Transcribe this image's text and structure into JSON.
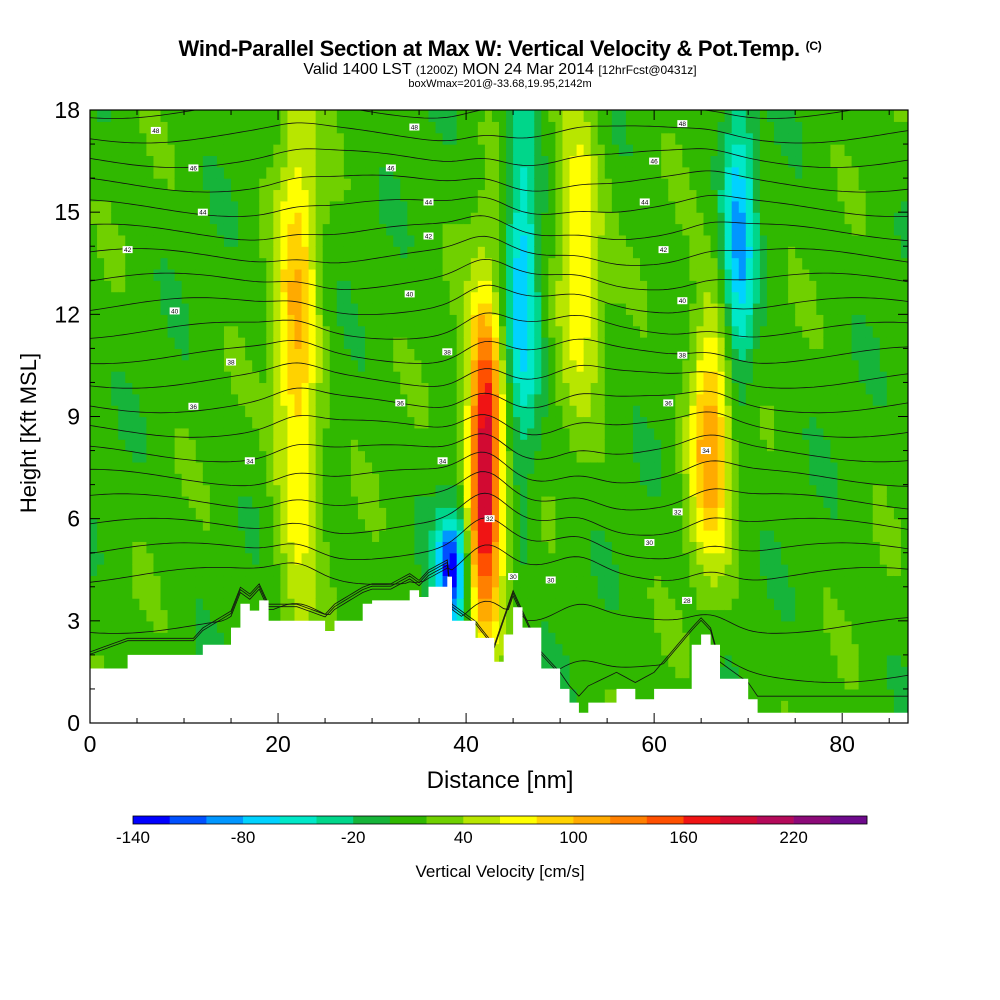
{
  "title": {
    "main": "Wind-Parallel Section at Max W: Vertical Velocity & Pot.Temp.",
    "copyright": "(C)",
    "valid_prefix": "Valid 1400 LST",
    "valid_zulu": "(1200Z)",
    "valid_date": "MON 24 Mar 2014",
    "forecast": "[12hrFcst@0431z]",
    "box_info": "boxWmax=201@-33.68,19.95,2142m"
  },
  "chart_data": {
    "type": "heatmap",
    "xlabel": "Distance [nm]",
    "ylabel": "Height [Kft MSL]",
    "xlim": [
      0,
      87
    ],
    "ylim": [
      0,
      18
    ],
    "x_ticks": [
      0,
      20,
      40,
      60,
      80
    ],
    "y_ticks": [
      0,
      3,
      6,
      9,
      12,
      15,
      18
    ],
    "x_tick_labels": [
      "0",
      "20",
      "40",
      "60",
      "80"
    ],
    "y_tick_labels": [
      "0",
      "3",
      "6",
      "9",
      "12",
      "15",
      "18"
    ],
    "colorbar": {
      "label": "Vertical Velocity [cm/s]",
      "min": -140,
      "max": 260,
      "step": 20,
      "tick_values": [
        -140,
        -80,
        -20,
        40,
        100,
        160,
        220
      ],
      "tick_labels": [
        "-140",
        "-80",
        "-20",
        "40",
        "100",
        "160",
        "220"
      ],
      "colors": [
        "#0000ff",
        "#0050ff",
        "#0096ff",
        "#00d2ff",
        "#00e8c8",
        "#00d68a",
        "#16b43a",
        "#30b800",
        "#70d000",
        "#b8e600",
        "#ffff00",
        "#ffd200",
        "#ffaa00",
        "#ff8000",
        "#ff5000",
        "#f01414",
        "#d20a32",
        "#b40a5a",
        "#8c0a78",
        "#6e0a8c"
      ]
    },
    "updrafts": [
      {
        "x": 22,
        "z_min": 4,
        "z_max": 18,
        "w_max": 90
      },
      {
        "x": 42,
        "z_min": 3,
        "z_max": 12,
        "w_max": 201
      },
      {
        "x": 52,
        "z_min": 10,
        "z_max": 18,
        "w_max": 80
      },
      {
        "x": 66,
        "z_min": 5,
        "z_max": 12,
        "w_max": 110
      }
    ],
    "downdrafts": [
      {
        "x": 38.5,
        "z_min": 3,
        "z_max": 6,
        "w_min": -140
      },
      {
        "x": 46,
        "z_min": 8,
        "z_max": 18,
        "w_min": -80
      },
      {
        "x": 69,
        "z_min": 10,
        "z_max": 18,
        "w_min": -90
      }
    ],
    "terrain_kft": {
      "x": [
        0,
        4,
        11,
        12,
        15,
        16,
        17,
        18,
        19,
        22,
        25,
        26,
        29,
        30,
        32,
        34,
        35,
        36,
        38,
        38.5,
        41,
        43,
        44,
        45,
        46,
        48,
        50,
        51,
        52,
        53,
        56,
        58,
        60,
        64,
        65,
        66,
        67,
        70,
        71,
        75,
        80,
        87
      ],
      "z": [
        1.6,
        2.0,
        2.0,
        2.3,
        2.8,
        3.5,
        3.3,
        3.6,
        3.0,
        3.0,
        2.7,
        3.0,
        3.5,
        3.6,
        3.6,
        3.9,
        3.7,
        4.0,
        4.3,
        3.0,
        2.5,
        1.8,
        2.6,
        3.4,
        2.8,
        1.6,
        1.0,
        0.6,
        0.3,
        0.6,
        1.0,
        0.7,
        1.0,
        2.3,
        2.6,
        2.3,
        1.3,
        0.7,
        0.3,
        0.3,
        0.3,
        0.3
      ]
    },
    "theta_contour_labels": [
      {
        "x": 7,
        "z": 17.4,
        "text": "48"
      },
      {
        "x": 11,
        "z": 16.3,
        "text": "46"
      },
      {
        "x": 12,
        "z": 15.0,
        "text": "44"
      },
      {
        "x": 4,
        "z": 13.9,
        "text": "42"
      },
      {
        "x": 9,
        "z": 12.1,
        "text": "40"
      },
      {
        "x": 15,
        "z": 10.6,
        "text": "38"
      },
      {
        "x": 11,
        "z": 9.3,
        "text": "36"
      },
      {
        "x": 17,
        "z": 7.7,
        "text": "34"
      },
      {
        "x": 34.5,
        "z": 17.5,
        "text": "48"
      },
      {
        "x": 32,
        "z": 16.3,
        "text": "46"
      },
      {
        "x": 36,
        "z": 15.3,
        "text": "44"
      },
      {
        "x": 36,
        "z": 14.3,
        "text": "42"
      },
      {
        "x": 34,
        "z": 12.6,
        "text": "40"
      },
      {
        "x": 38,
        "z": 10.9,
        "text": "38"
      },
      {
        "x": 33,
        "z": 9.4,
        "text": "36"
      },
      {
        "x": 37.5,
        "z": 7.7,
        "text": "34"
      },
      {
        "x": 42.5,
        "z": 6.0,
        "text": "32"
      },
      {
        "x": 45,
        "z": 4.3,
        "text": "30"
      },
      {
        "x": 49,
        "z": 4.2,
        "text": "30"
      },
      {
        "x": 63,
        "z": 17.6,
        "text": "48"
      },
      {
        "x": 60,
        "z": 16.5,
        "text": "46"
      },
      {
        "x": 59,
        "z": 15.3,
        "text": "44"
      },
      {
        "x": 61,
        "z": 13.9,
        "text": "42"
      },
      {
        "x": 63,
        "z": 12.4,
        "text": "40"
      },
      {
        "x": 63,
        "z": 10.8,
        "text": "38"
      },
      {
        "x": 61.5,
        "z": 9.4,
        "text": "36"
      },
      {
        "x": 65.5,
        "z": 8.0,
        "text": "34"
      },
      {
        "x": 62.5,
        "z": 6.2,
        "text": "32"
      },
      {
        "x": 59.5,
        "z": 5.3,
        "text": "30"
      },
      {
        "x": 63.5,
        "z": 3.6,
        "text": "28"
      }
    ],
    "theta_levels": [
      24,
      26,
      28,
      30,
      31,
      32,
      33,
      34,
      35,
      36,
      37,
      38,
      39,
      40,
      41,
      42,
      43,
      44,
      45,
      46,
      47,
      48,
      49,
      50
    ]
  }
}
